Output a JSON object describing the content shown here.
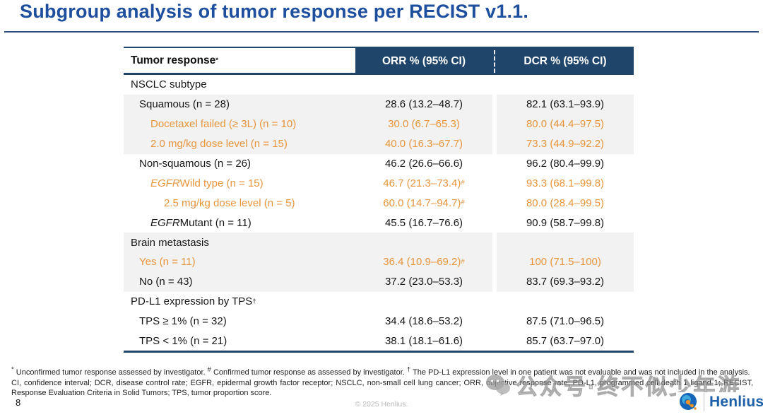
{
  "slide": {
    "title": "Subgroup analysis of tumor response per RECIST v1.1.",
    "page_number": "8",
    "copyright": "© 2025 Henlius.",
    "logo_text": "Henlius",
    "watermark_text": "公众号·终不似少年游"
  },
  "colors": {
    "title_blue": "#1E4E9E",
    "header_navy": "#20456A",
    "orange_accent": "#E8953C",
    "row_gray": "#F2F2F2",
    "logo_blue": "#1D5FA9"
  },
  "table": {
    "header": {
      "col1": "Tumor response",
      "col1_sup": "*",
      "col2": "ORR % (95% CI)",
      "col3": "DCR % (95% CI)"
    },
    "rows": [
      {
        "label": "NSCLC subtype",
        "indent": 0,
        "section": true,
        "color": "black",
        "bg": "white",
        "italic_prefix": "",
        "label_sup": "",
        "orr": "",
        "orr_sup": "",
        "dcr": ""
      },
      {
        "label": "Squamous (n = 28)",
        "indent": 1,
        "section": false,
        "color": "black",
        "bg": "gray",
        "italic_prefix": "",
        "label_sup": "",
        "orr": "28.6 (13.2–48.7)",
        "orr_sup": "",
        "dcr": "82.1 (63.1–93.9)"
      },
      {
        "label": "Docetaxel failed (≥ 3L) (n = 10)",
        "indent": 2,
        "section": false,
        "color": "orange",
        "bg": "gray",
        "italic_prefix": "",
        "label_sup": "",
        "orr": "30.0 (6.7–65.3)",
        "orr_sup": "",
        "dcr": "80.0 (44.4–97.5)"
      },
      {
        "label": "2.0 mg/kg dose level (n = 15)",
        "indent": 2,
        "section": false,
        "color": "orange",
        "bg": "gray",
        "italic_prefix": "",
        "label_sup": "",
        "orr": "40.0 (16.3–67.7)",
        "orr_sup": "",
        "dcr": "73.3 (44.9–92.2)"
      },
      {
        "label": "Non-squamous (n = 26)",
        "indent": 1,
        "section": false,
        "color": "black",
        "bg": "white",
        "italic_prefix": "",
        "label_sup": "",
        "orr": "46.2 (26.6–66.6)",
        "orr_sup": "",
        "dcr": "96.2 (80.4–99.9)"
      },
      {
        "label": " Wild type (n = 15)",
        "indent": 2,
        "section": false,
        "color": "orange",
        "bg": "white",
        "italic_prefix": "EGFR",
        "label_sup": "",
        "orr": "46.7 (21.3–73.4)",
        "orr_sup": "#",
        "dcr": "93.3 (68.1–99.8)"
      },
      {
        "label": "2.5 mg/kg dose level (n = 5)",
        "indent": 3,
        "section": false,
        "color": "orange",
        "bg": "white",
        "italic_prefix": "",
        "label_sup": "",
        "orr": "60.0 (14.7–94.7)",
        "orr_sup": "#",
        "dcr": "80.0 (28.4–99.5)"
      },
      {
        "label": " Mutant (n = 11)",
        "indent": 2,
        "section": false,
        "color": "black",
        "bg": "white",
        "italic_prefix": "EGFR",
        "label_sup": "",
        "orr": "45.5 (16.7–76.6)",
        "orr_sup": "",
        "dcr": "90.9 (58.7–99.8)"
      },
      {
        "label": "Brain metastasis",
        "indent": 0,
        "section": true,
        "color": "black",
        "bg": "gray",
        "italic_prefix": "",
        "label_sup": "",
        "orr": "",
        "orr_sup": "",
        "dcr": ""
      },
      {
        "label": "Yes (n = 11)",
        "indent": 1,
        "section": false,
        "color": "orange",
        "bg": "gray",
        "italic_prefix": "",
        "label_sup": "",
        "orr": "36.4 (10.9–69.2)",
        "orr_sup": "#",
        "dcr": "100 (71.5–100)"
      },
      {
        "label": "No (n = 43)",
        "indent": 1,
        "section": false,
        "color": "black",
        "bg": "gray",
        "italic_prefix": "",
        "label_sup": "",
        "orr": "37.2 (23.0–53.3)",
        "orr_sup": "",
        "dcr": "83.7 (69.3–93.2)"
      },
      {
        "label": "PD-L1 expression by TPS",
        "indent": 0,
        "section": true,
        "color": "black",
        "bg": "white",
        "italic_prefix": "",
        "label_sup": "†",
        "orr": "",
        "orr_sup": "",
        "dcr": ""
      },
      {
        "label": "TPS ≥ 1% (n = 32)",
        "indent": 1,
        "section": false,
        "color": "black",
        "bg": "white",
        "italic_prefix": "",
        "label_sup": "",
        "orr": "34.4 (18.6–53.2)",
        "orr_sup": "",
        "dcr": "87.5 (71.0–96.5)"
      },
      {
        "label": "TPS < 1% (n = 21)",
        "indent": 1,
        "section": false,
        "color": "black",
        "bg": "white",
        "italic_prefix": "",
        "label_sup": "",
        "orr": "38.1 (18.1–61.6)",
        "orr_sup": "",
        "dcr": "85.7 (63.7–97.0)"
      }
    ]
  },
  "footnotes": {
    "line1_segments": [
      {
        "sup": "*"
      },
      {
        "text": " Unconfirmed tumor response assessed by investigator. "
      },
      {
        "sup": "#"
      },
      {
        "text": " Confirmed tumor response as assessed by investigator. "
      },
      {
        "sup": "†"
      },
      {
        "text": " The PD-L1 expression level in one patient was not evaluable and was not included in the analysis."
      }
    ],
    "line2": "CI, confidence interval; DCR, disease control rate; EGFR, epidermal growth factor receptor; NSCLC, non-small cell lung cancer; ORR, objective response rate; PD-L1, programmed cell death 1 ligand 1; RECIST,",
    "line3": "Response Evaluation Criteria in Solid Tumors; TPS, tumor proportion score."
  }
}
